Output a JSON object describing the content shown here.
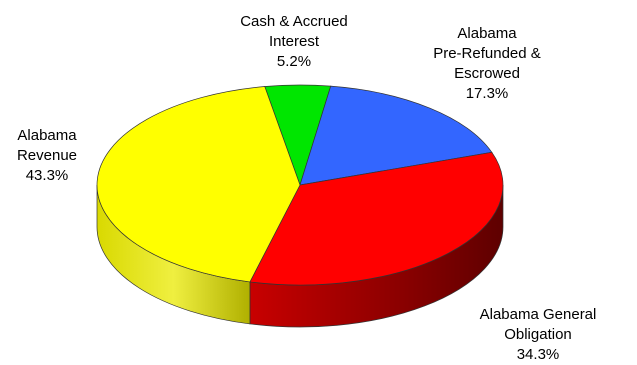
{
  "chart_data": {
    "type": "pie",
    "style": "3d",
    "slices": [
      {
        "name": "Cash & Accrued Interest",
        "value": 5.2,
        "display": "5.2%",
        "label_lines": [
          "Cash & Accrued",
          "Interest",
          "5.2%"
        ],
        "color": "#00e600",
        "side_color": "#008a00"
      },
      {
        "name": "Alabama Pre-Refunded & Escrowed",
        "value": 17.3,
        "display": "17.3%",
        "label_lines": [
          "Alabama",
          "Pre-Refunded &",
          "Escrowed",
          "17.3%"
        ],
        "color": "#3366ff",
        "side_color": "#1f3d99"
      },
      {
        "name": "Alabama General Obligation",
        "value": 34.3,
        "display": "34.3%",
        "label_lines": [
          "Alabama General",
          "Obligation",
          "34.3%"
        ],
        "color": "#ff0000",
        "side_color": "#7a0000"
      },
      {
        "name": "Alabama Revenue",
        "value": 43.3,
        "display": "43.3%",
        "label_lines": [
          "Alabama",
          "Revenue",
          "43.3%"
        ],
        "color": "#ffff00",
        "side_color": "#b8b800"
      }
    ]
  }
}
